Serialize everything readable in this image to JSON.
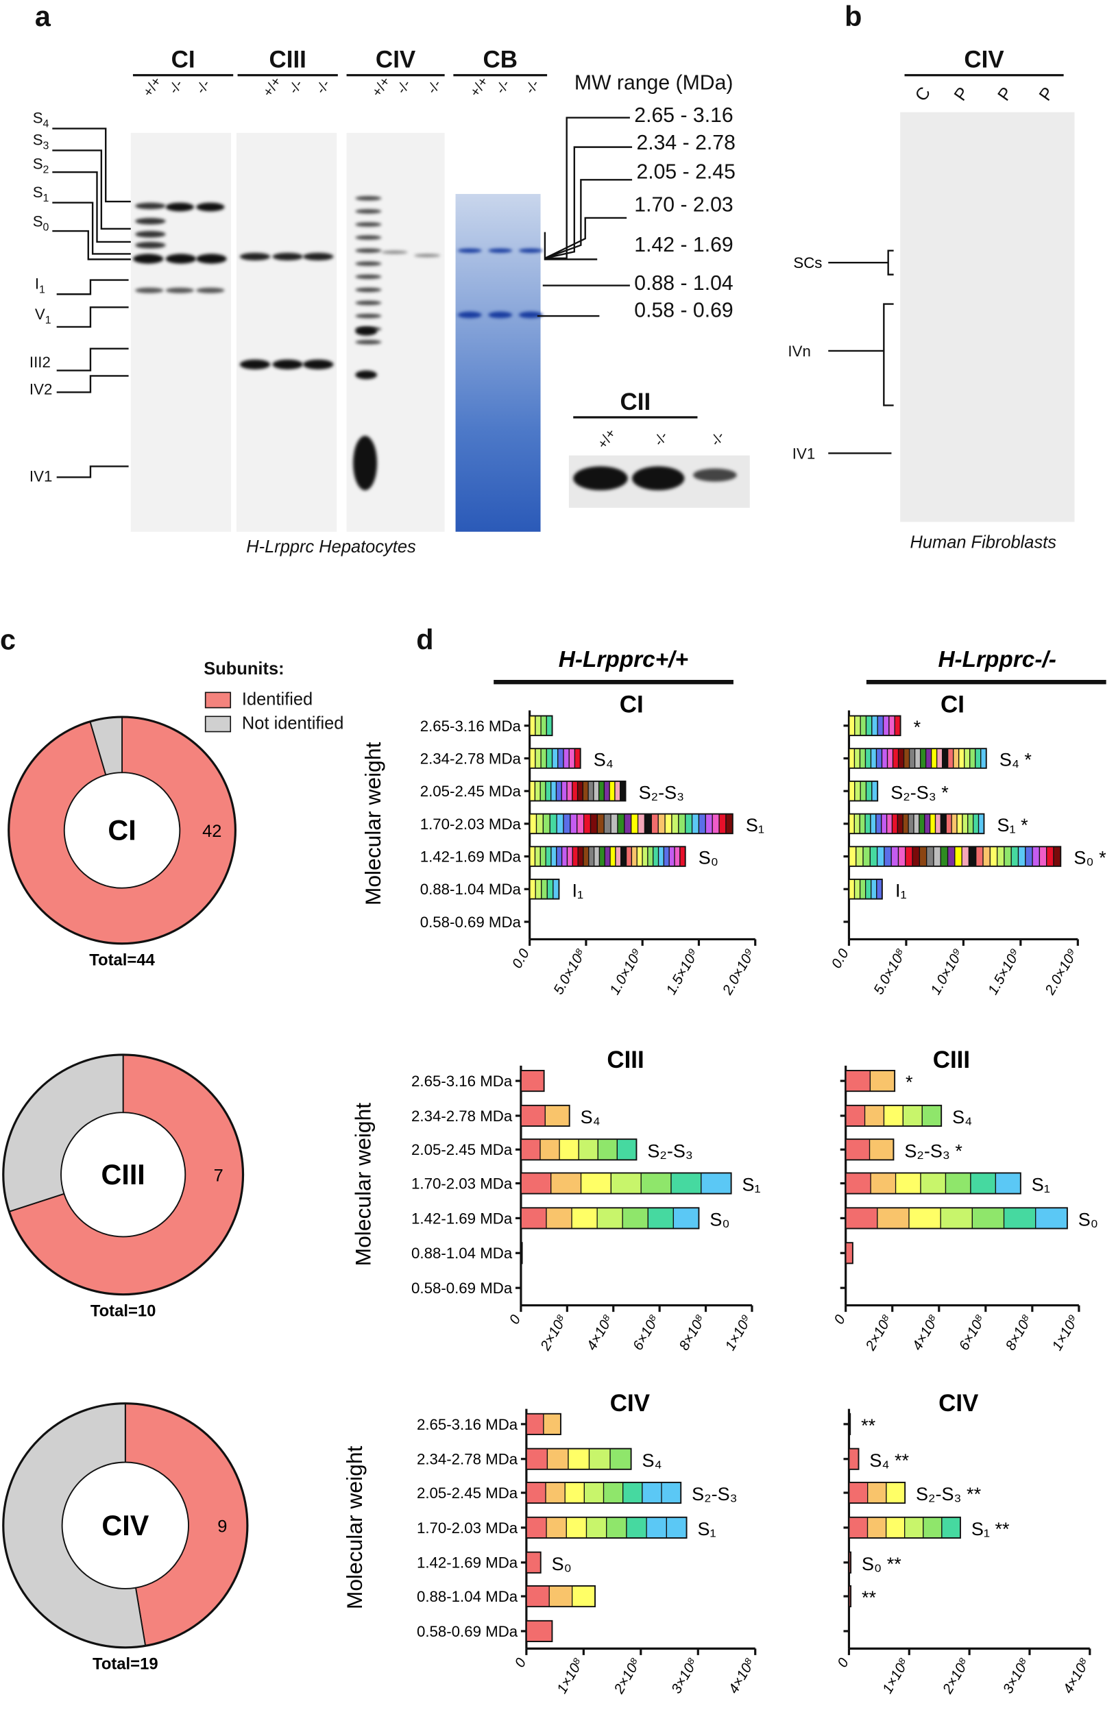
{
  "panel_a": {
    "letter": "a",
    "headers": [
      "CI",
      "CIII",
      "CIV",
      "CB"
    ],
    "lanes": [
      "+/+",
      "-/-",
      "-/-"
    ],
    "mw_title": "MW range (MDa)",
    "mw_ranges": [
      "2.65 - 3.16",
      "2.34 - 2.78",
      "2.05 - 2.45",
      "1.70 - 2.03",
      "1.42 - 1.69",
      "0.88 - 1.04",
      "0.58 - 0.69"
    ],
    "band_labels": [
      "S4",
      "S3",
      "S2",
      "S1",
      "S0",
      "I1",
      "V1",
      "III2",
      "IV2",
      "IV1"
    ],
    "cii_header": "CII",
    "caption": "H-Lrpprc Hepatocytes"
  },
  "panel_b": {
    "letter": "b",
    "header": "CIV",
    "lanes": [
      "C",
      "P",
      "P",
      "P"
    ],
    "band_labels": [
      "SCs",
      "IVn",
      "IV1"
    ],
    "caption": "Human Fibroblasts"
  },
  "panel_c": {
    "letter": "c",
    "legend_title": "Subunits:",
    "legend": [
      {
        "label": "Identified",
        "color": "#f4837d"
      },
      {
        "label": "Not identified",
        "color": "#d0d0d0"
      }
    ],
    "donuts": [
      {
        "name": "CI",
        "identified": 42,
        "total": 44,
        "total_label": "Total=44"
      },
      {
        "name": "CIII",
        "identified": 7,
        "total": 10,
        "total_label": "Total=10"
      },
      {
        "name": "CIV",
        "identified": 9,
        "total": 19,
        "total_label": "Total=19"
      }
    ]
  },
  "panel_d": {
    "letter": "d",
    "group_titles": [
      "H-Lrpprc+/+",
      "H-Lrpprc-/-"
    ],
    "ylabel": "Molecular weight"
  },
  "chart_data": [
    {
      "type": "bar",
      "orientation": "horizontal",
      "stacked": true,
      "title": "CI",
      "genotype": "+/+",
      "categories": [
        "2.65-3.16 MDa",
        "2.34-2.78 MDa",
        "2.05-2.45 MDa",
        "1.70-2.03 MDa",
        "1.42-1.69 MDa",
        "0.88-1.04 MDa",
        "0.58-0.69 MDa"
      ],
      "values": [
        200000000.0,
        450000000.0,
        850000000.0,
        1800000000.0,
        1380000000.0,
        260000000.0,
        0
      ],
      "annotations": [
        "",
        "S₄",
        "S₂-S₃",
        "S₁",
        "S₀",
        "I₁",
        ""
      ],
      "xlim": [
        0,
        2000000000.0
      ],
      "xticks": [
        "0.0",
        "5.0×10⁸",
        "1.0×10⁹",
        "1.5×10⁹",
        "2.0×10⁹"
      ],
      "segments": 30
    },
    {
      "type": "bar",
      "orientation": "horizontal",
      "stacked": true,
      "title": "CI",
      "genotype": "-/-",
      "categories": [
        "2.65-3.16 MDa",
        "2.34-2.78 MDa",
        "2.05-2.45 MDa",
        "1.70-2.03 MDa",
        "1.42-1.69 MDa",
        "0.88-1.04 MDa",
        "0.58-0.69 MDa"
      ],
      "values": [
        450000000.0,
        1200000000.0,
        250000000.0,
        1180000000.0,
        1850000000.0,
        290000000.0,
        0
      ],
      "annotations": [
        "*",
        "S₄  *",
        "S₂-S₃  *",
        "S₁  *",
        "S₀ *",
        "I₁",
        ""
      ],
      "xlim": [
        0,
        2000000000.0
      ],
      "xticks": [
        "0.0",
        "5.0×10⁸",
        "1.0×10⁹",
        "1.5×10⁹",
        "2.0×10⁹"
      ],
      "segments": 30
    },
    {
      "type": "bar",
      "orientation": "horizontal",
      "stacked": true,
      "title": "CIII",
      "genotype": "+/+",
      "categories": [
        "2.65-3.16 MDa",
        "2.34-2.78 MDa",
        "2.05-2.45 MDa",
        "1.70-2.03 MDa",
        "1.42-1.69 MDa",
        "0.88-1.04 MDa",
        "0.58-0.69 MDa"
      ],
      "values": [
        100000000.0,
        210000000.0,
        500000000.0,
        910000000.0,
        770000000.0,
        5000000.0,
        0
      ],
      "annotations": [
        "",
        "S₄",
        "S₂-S₃",
        "S₁",
        "S₀",
        "",
        ""
      ],
      "xlim": [
        0,
        1000000000.0
      ],
      "xticks": [
        "0",
        "2×10⁸",
        "4×10⁸",
        "6×10⁸",
        "8×10⁸",
        "1×10⁹"
      ],
      "segments": 7
    },
    {
      "type": "bar",
      "orientation": "horizontal",
      "stacked": true,
      "title": "CIII",
      "genotype": "-/-",
      "categories": [
        "2.65-3.16 MDa",
        "2.34-2.78 MDa",
        "2.05-2.45 MDa",
        "1.70-2.03 MDa",
        "1.42-1.69 MDa",
        "0.88-1.04 MDa",
        "0.58-0.69 MDa"
      ],
      "values": [
        210000000.0,
        410000000.0,
        205000000.0,
        750000000.0,
        950000000.0,
        30000000.0,
        0
      ],
      "annotations": [
        "*",
        "S₄",
        "S₂-S₃ *",
        "S₁",
        "S₀",
        "",
        ""
      ],
      "xlim": [
        0,
        1000000000.0
      ],
      "xticks": [
        "0",
        "2×10⁸",
        "4×10⁸",
        "6×10⁸",
        "8×10⁸",
        "1×10⁹"
      ],
      "segments": 7
    },
    {
      "type": "bar",
      "orientation": "horizontal",
      "stacked": true,
      "title": "CIV",
      "genotype": "+/+",
      "categories": [
        "2.65-3.16 MDa",
        "2.34-2.78 MDa",
        "2.05-2.45 MDa",
        "1.70-2.03 MDa",
        "1.42-1.69 MDa",
        "0.88-1.04 MDa",
        "0.58-0.69 MDa"
      ],
      "values": [
        60000000.0,
        183000000.0,
        270000000.0,
        280000000.0,
        25000000.0,
        120000000.0,
        45000000.0
      ],
      "annotations": [
        "",
        "S₄",
        "S₂-S₃",
        "S₁",
        "S₀",
        "",
        ""
      ],
      "xlim": [
        0,
        400000000.0
      ],
      "xticks": [
        "0",
        "1×10⁸",
        "2×10⁸",
        "3×10⁸",
        "4×10⁸"
      ],
      "segments": 9
    },
    {
      "type": "bar",
      "orientation": "horizontal",
      "stacked": true,
      "title": "CIV",
      "genotype": "-/-",
      "categories": [
        "2.65-3.16 MDa",
        "2.34-2.78 MDa",
        "2.05-2.45 MDa",
        "1.70-2.03 MDa",
        "1.42-1.69 MDa",
        "0.88-1.04 MDa",
        "0.58-0.69 MDa"
      ],
      "values": [
        2000000.0,
        16000000.0,
        93000000.0,
        185000000.0,
        3000000.0,
        3000000.0,
        0
      ],
      "annotations": [
        "**",
        "S₄ **",
        "S₂-S₃ **",
        "S₁ **",
        "S₀ **",
        "**",
        ""
      ],
      "xlim": [
        0,
        400000000.0
      ],
      "xticks": [
        "0",
        "1×10⁸",
        "2×10⁸",
        "3×10⁸",
        "4×10⁸"
      ],
      "segments": 9
    }
  ],
  "colors": {
    "palette": [
      "#f26d6d",
      "#f9c46b",
      "#ffff66",
      "#c8f56b",
      "#8fe66b",
      "#46d9a0",
      "#5bc8f5",
      "#5b6ee8",
      "#c45cf0",
      "#f05cc8",
      "#e8102a",
      "#7a0a0a",
      "#8b4513",
      "#808080",
      "#bdbdbd",
      "#2e8b22",
      "#7b2fa0",
      "#ffff00",
      "#f4a6b8",
      "#111111"
    ]
  }
}
